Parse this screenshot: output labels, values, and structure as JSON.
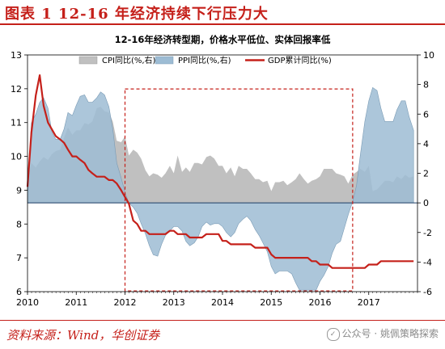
{
  "header": {
    "title": "图表 1    12-16 年经济持续下行压力大"
  },
  "footer": {
    "source": "资料来源：Wind，华创证券",
    "watermark": "公众号 · 姚佩策略探索"
  },
  "colors": {
    "cpi": "#c0c0c0",
    "ppi": "#9dbcd4",
    "gdp": "#c5201a",
    "box": "#c5201a",
    "header": "#c5201a"
  },
  "chart_data": {
    "type": "area",
    "title": "12-16年经济转型期，价格水平低位、实体回报率低",
    "xlabel": "",
    "ylabel": "",
    "x_ticks": [
      "2010",
      "2011",
      "2012",
      "2013",
      "2014",
      "2015",
      "2016",
      "2017"
    ],
    "x_range": [
      2010.0,
      2018.0
    ],
    "y_left": {
      "range": [
        6,
        13
      ],
      "ticks": [
        6,
        7,
        8,
        9,
        10,
        11,
        12,
        13
      ]
    },
    "y_right": {
      "range": [
        -6,
        10
      ],
      "ticks": [
        -6,
        -4,
        -2,
        0,
        2,
        4,
        6,
        8,
        10
      ]
    },
    "legend": {
      "placement": "top"
    },
    "series": [
      {
        "name": "CPI同比(%,右)",
        "type": "area",
        "axis": "right",
        "color": "#c0c0c0",
        "x": [
          2010.0,
          2010.08,
          2010.17,
          2010.25,
          2010.33,
          2010.42,
          2010.5,
          2010.58,
          2010.67,
          2010.75,
          2010.83,
          2010.92,
          2011.0,
          2011.08,
          2011.17,
          2011.25,
          2011.33,
          2011.42,
          2011.5,
          2011.58,
          2011.67,
          2011.75,
          2011.83,
          2011.92,
          2012.0,
          2012.08,
          2012.17,
          2012.25,
          2012.33,
          2012.42,
          2012.5,
          2012.58,
          2012.67,
          2012.75,
          2012.83,
          2012.92,
          2013.0,
          2013.08,
          2013.17,
          2013.25,
          2013.33,
          2013.42,
          2013.5,
          2013.58,
          2013.67,
          2013.75,
          2013.83,
          2013.92,
          2014.0,
          2014.08,
          2014.17,
          2014.25,
          2014.33,
          2014.42,
          2014.5,
          2014.58,
          2014.67,
          2014.75,
          2014.83,
          2014.92,
          2015.0,
          2015.08,
          2015.17,
          2015.25,
          2015.33,
          2015.42,
          2015.5,
          2015.58,
          2015.67,
          2015.75,
          2015.83,
          2015.92,
          2016.0,
          2016.08,
          2016.17,
          2016.25,
          2016.33,
          2016.42,
          2016.5,
          2016.58,
          2016.67,
          2016.75,
          2016.83,
          2016.92,
          2017.0,
          2017.08,
          2017.17,
          2017.25,
          2017.33,
          2017.42,
          2017.5,
          2017.58,
          2017.67,
          2017.75,
          2017.83,
          2017.92
        ],
        "values": [
          1.5,
          2.7,
          2.4,
          2.8,
          3.1,
          2.9,
          3.3,
          3.5,
          3.6,
          4.4,
          5.1,
          4.6,
          4.9,
          4.9,
          5.4,
          5.3,
          5.5,
          6.4,
          6.5,
          6.2,
          6.1,
          5.5,
          4.2,
          4.1,
          4.5,
          3.2,
          3.6,
          3.4,
          3.0,
          2.2,
          1.8,
          2.0,
          1.9,
          1.7,
          2.0,
          2.5,
          2.0,
          3.2,
          2.1,
          2.4,
          2.1,
          2.7,
          2.7,
          2.6,
          3.1,
          3.2,
          3.0,
          2.5,
          2.5,
          2.0,
          2.4,
          1.8,
          2.5,
          2.3,
          2.3,
          2.0,
          1.6,
          1.6,
          1.4,
          1.5,
          0.8,
          1.4,
          1.4,
          1.5,
          1.2,
          1.4,
          1.6,
          2.0,
          1.6,
          1.3,
          1.5,
          1.6,
          1.8,
          2.3,
          2.3,
          2.3,
          2.0,
          1.9,
          1.8,
          1.3,
          1.9,
          2.1,
          2.3,
          2.1,
          2.5,
          0.8,
          0.9,
          1.2,
          1.5,
          1.5,
          1.4,
          1.8,
          1.6,
          1.9,
          1.7,
          1.8
        ]
      },
      {
        "name": "PPI同比(%,右)",
        "type": "area",
        "axis": "right",
        "color": "#9dbcd4",
        "x": [
          2010.0,
          2010.08,
          2010.17,
          2010.25,
          2010.33,
          2010.42,
          2010.5,
          2010.58,
          2010.67,
          2010.75,
          2010.83,
          2010.92,
          2011.0,
          2011.08,
          2011.17,
          2011.25,
          2011.33,
          2011.42,
          2011.5,
          2011.58,
          2011.67,
          2011.75,
          2011.83,
          2011.92,
          2012.0,
          2012.08,
          2012.17,
          2012.25,
          2012.33,
          2012.42,
          2012.5,
          2012.58,
          2012.67,
          2012.75,
          2012.83,
          2012.92,
          2013.0,
          2013.08,
          2013.17,
          2013.25,
          2013.33,
          2013.42,
          2013.5,
          2013.58,
          2013.67,
          2013.75,
          2013.83,
          2013.92,
          2014.0,
          2014.08,
          2014.17,
          2014.25,
          2014.33,
          2014.42,
          2014.5,
          2014.58,
          2014.67,
          2014.75,
          2014.83,
          2014.92,
          2015.0,
          2015.08,
          2015.17,
          2015.25,
          2015.33,
          2015.42,
          2015.5,
          2015.58,
          2015.67,
          2015.75,
          2015.83,
          2015.92,
          2016.0,
          2016.08,
          2016.17,
          2016.25,
          2016.33,
          2016.42,
          2016.5,
          2016.58,
          2016.67,
          2016.75,
          2016.83,
          2016.92,
          2017.0,
          2017.08,
          2017.17,
          2017.25,
          2017.33,
          2017.42,
          2017.5,
          2017.58,
          2017.67,
          2017.75,
          2017.83,
          2017.92
        ],
        "values": [
          0.6,
          5.4,
          6.0,
          6.8,
          7.1,
          6.4,
          4.8,
          4.3,
          4.3,
          5.0,
          6.1,
          5.9,
          6.6,
          7.2,
          7.3,
          6.8,
          6.8,
          7.1,
          7.5,
          7.3,
          6.5,
          5.0,
          2.7,
          1.7,
          0.7,
          0.0,
          -0.3,
          -0.7,
          -1.4,
          -2.1,
          -2.9,
          -3.5,
          -3.6,
          -2.8,
          -2.2,
          -1.9,
          -1.6,
          -1.6,
          -1.9,
          -2.6,
          -2.9,
          -2.7,
          -2.3,
          -1.6,
          -1.3,
          -1.5,
          -1.4,
          -1.4,
          -1.6,
          -2.0,
          -2.3,
          -2.0,
          -1.4,
          -1.1,
          -0.9,
          -1.2,
          -1.8,
          -2.2,
          -2.7,
          -3.3,
          -4.3,
          -4.8,
          -4.6,
          -4.6,
          -4.6,
          -4.8,
          -5.4,
          -5.9,
          -5.9,
          -5.9,
          -5.9,
          -5.9,
          -5.3,
          -4.9,
          -4.3,
          -3.4,
          -2.8,
          -2.6,
          -1.7,
          -0.8,
          0.1,
          1.2,
          3.3,
          5.5,
          6.9,
          7.8,
          7.6,
          6.4,
          5.5,
          5.5,
          5.5,
          6.3,
          6.9,
          6.9,
          5.8,
          4.9
        ]
      },
      {
        "name": "GDP累计同比(%)",
        "type": "line",
        "axis": "left",
        "color": "#c5201a",
        "x": [
          2010.0,
          2010.08,
          2010.17,
          2010.25,
          2010.33,
          2010.42,
          2010.5,
          2010.58,
          2010.67,
          2010.75,
          2010.83,
          2010.92,
          2011.0,
          2011.08,
          2011.17,
          2011.25,
          2011.33,
          2011.42,
          2011.5,
          2011.58,
          2011.67,
          2011.75,
          2011.83,
          2011.92,
          2012.0,
          2012.08,
          2012.17,
          2012.25,
          2012.33,
          2012.42,
          2012.5,
          2012.58,
          2012.67,
          2012.75,
          2012.83,
          2012.92,
          2013.0,
          2013.08,
          2013.17,
          2013.25,
          2013.33,
          2013.42,
          2013.5,
          2013.58,
          2013.67,
          2013.75,
          2013.83,
          2013.92,
          2014.0,
          2014.08,
          2014.17,
          2014.25,
          2014.33,
          2014.42,
          2014.5,
          2014.58,
          2014.67,
          2014.75,
          2014.83,
          2014.92,
          2015.0,
          2015.08,
          2015.17,
          2015.25,
          2015.33,
          2015.42,
          2015.5,
          2015.58,
          2015.67,
          2015.75,
          2015.83,
          2015.92,
          2016.0,
          2016.08,
          2016.17,
          2016.25,
          2016.33,
          2016.42,
          2016.5,
          2016.58,
          2016.67,
          2016.75,
          2016.83,
          2016.92,
          2017.0,
          2017.08,
          2017.17,
          2017.25,
          2017.33,
          2017.42,
          2017.5,
          2017.58,
          2017.67,
          2017.75,
          2017.83,
          2017.92
        ],
        "values": [
          9.1,
          10.7,
          11.8,
          12.4,
          11.5,
          11.0,
          10.8,
          10.6,
          10.5,
          10.4,
          10.2,
          10.0,
          10.0,
          9.9,
          9.8,
          9.6,
          9.5,
          9.4,
          9.4,
          9.4,
          9.3,
          9.3,
          9.2,
          9.0,
          8.8,
          8.6,
          8.1,
          8.0,
          7.8,
          7.8,
          7.7,
          7.7,
          7.7,
          7.7,
          7.7,
          7.8,
          7.8,
          7.7,
          7.7,
          7.7,
          7.6,
          7.6,
          7.6,
          7.6,
          7.7,
          7.7,
          7.7,
          7.7,
          7.5,
          7.5,
          7.4,
          7.4,
          7.4,
          7.4,
          7.4,
          7.4,
          7.3,
          7.3,
          7.3,
          7.3,
          7.1,
          7.0,
          7.0,
          7.0,
          7.0,
          7.0,
          7.0,
          7.0,
          7.0,
          7.0,
          6.9,
          6.9,
          6.8,
          6.8,
          6.8,
          6.7,
          6.7,
          6.7,
          6.7,
          6.7,
          6.7,
          6.7,
          6.7,
          6.7,
          6.8,
          6.8,
          6.8,
          6.9,
          6.9,
          6.9,
          6.9,
          6.9,
          6.9,
          6.9,
          6.9,
          6.9
        ]
      }
    ],
    "annotations": [
      {
        "type": "dashed-box",
        "x_range": [
          2012.0,
          2016.67
        ],
        "y_right_range": [
          -5.95,
          7.7
        ],
        "color": "#c5201a"
      }
    ]
  }
}
